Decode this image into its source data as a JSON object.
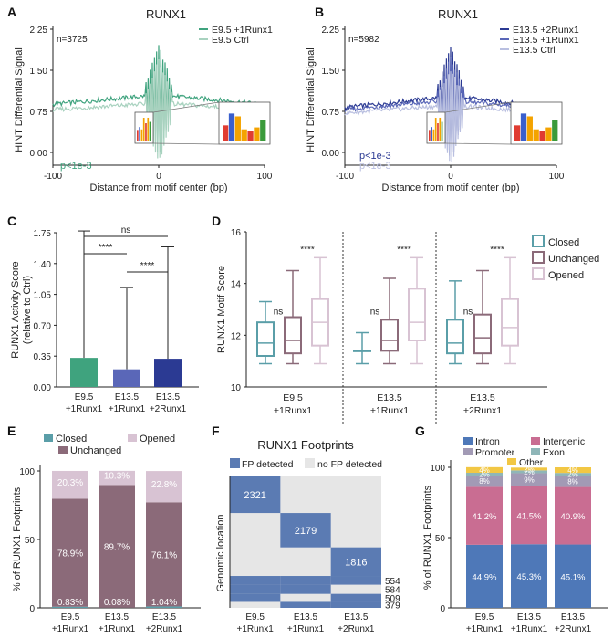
{
  "colors": {
    "green": "#3fa37e",
    "green_light": "#a8d2bf",
    "navy": "#2b3a93",
    "blue_mid": "#5a67b8",
    "blue_light": "#b9bfe0",
    "teal": "#5a9ea8",
    "mauve": "#8b6a79",
    "pink_light": "#d8c3d3",
    "intron": "#4e78b8",
    "intergenic": "#c96d92",
    "promoter": "#a29ab5",
    "exon": "#8fb6b8",
    "other": "#f2c744",
    "fp_blue": "#5b7bb3",
    "fp_gray": "#e6e6e6"
  },
  "panels": {
    "A": "A",
    "B": "B",
    "C": "C",
    "D": "D",
    "E": "E",
    "F": "F",
    "G": "G"
  },
  "chart_data": [
    {
      "id": "A",
      "type": "line",
      "title": "RUNX1",
      "annotation_n": "n=3725",
      "pvalue": "p<1e-3",
      "xlabel": "Distance from motif center (bp)",
      "ylabel": "HINT Differential Signal",
      "xlim": [
        -100,
        100
      ],
      "ylim": [
        0,
        2.25
      ],
      "xticks": [
        "-100",
        "0",
        "100"
      ],
      "yticks": [
        "0.00",
        "0.75",
        "1.50",
        "2.25"
      ],
      "series": [
        {
          "name": "E9.5 +1Runx1",
          "baseline": 1.05,
          "edge": 0.88,
          "color_key": "green"
        },
        {
          "name": "E9.5 Ctrl",
          "baseline": 0.9,
          "edge": 0.78,
          "color_key": "green_light"
        }
      ]
    },
    {
      "id": "B",
      "type": "line",
      "title": "RUNX1",
      "annotation_n": "n=5982",
      "pvalue_lines": [
        "p<1e-3",
        "p<1e-3"
      ],
      "xlabel": "Distance from motif center (bp)",
      "ylabel": "HINT Differential Signal",
      "xlim": [
        -100,
        100
      ],
      "ylim": [
        0,
        2.25
      ],
      "xticks": [
        "-100",
        "0",
        "100"
      ],
      "yticks": [
        "0.00",
        "0.75",
        "1.50",
        "2.25"
      ],
      "series": [
        {
          "name": "E13.5 +2Runx1",
          "baseline": 1.02,
          "edge": 0.82,
          "color_key": "navy"
        },
        {
          "name": "E13.5 +1Runx1",
          "baseline": 0.95,
          "edge": 0.78,
          "color_key": "blue_mid"
        },
        {
          "name": "E13.5 Ctrl",
          "baseline": 0.86,
          "edge": 0.72,
          "color_key": "blue_light"
        }
      ]
    },
    {
      "id": "C",
      "type": "bar",
      "ylabel_lines": [
        "RUNX1 Activity Score",
        "(relative to Ctrl)"
      ],
      "ylim": [
        0,
        1.75
      ],
      "yticks": [
        "0.00",
        "0.35",
        "0.70",
        "1.05",
        "1.40",
        "1.75"
      ],
      "categories": [
        [
          "E9.5",
          "+1Runx1"
        ],
        [
          "E13.5",
          "+1Runx1"
        ],
        [
          "E13.5",
          "+2Runx1"
        ]
      ],
      "values": [
        0.33,
        0.2,
        0.32
      ],
      "errors": [
        1.44,
        0.93,
        1.27
      ],
      "bar_color_keys": [
        "green",
        "blue_mid",
        "navy"
      ],
      "significance": [
        {
          "pair": [
            0,
            2
          ],
          "label": "ns"
        },
        {
          "pair": [
            0,
            1
          ],
          "label": "****"
        },
        {
          "pair": [
            1,
            2
          ],
          "label": "****"
        }
      ]
    },
    {
      "id": "D",
      "type": "box",
      "ylabel": "RUNX1 Motif Score",
      "ylim": [
        10,
        16
      ],
      "yticks": [
        "10",
        "12",
        "14",
        "16"
      ],
      "groups": [
        [
          "E9.5",
          "+1Runx1"
        ],
        [
          "E13.5",
          "+1Runx1"
        ],
        [
          "E13.5",
          "+2Runx1"
        ]
      ],
      "legend": [
        "Closed",
        "Unchanged",
        "Opened"
      ],
      "color_keys": [
        "teal",
        "mauve",
        "pink_light"
      ],
      "boxes": [
        [
          [
            10.9,
            11.2,
            11.7,
            12.5,
            13.3
          ],
          [
            10.9,
            11.3,
            11.8,
            12.7,
            14.5
          ],
          [
            10.9,
            11.6,
            12.5,
            13.4,
            15.0
          ]
        ],
        [
          [
            10.9,
            11.4,
            11.4,
            11.4,
            12.1
          ],
          [
            10.9,
            11.4,
            11.8,
            12.6,
            14.2
          ],
          [
            10.9,
            11.8,
            12.5,
            13.8,
            15.0
          ]
        ],
        [
          [
            10.9,
            11.3,
            11.7,
            12.6,
            14.1
          ],
          [
            10.9,
            11.3,
            11.9,
            12.8,
            14.5
          ],
          [
            10.9,
            11.6,
            12.3,
            13.4,
            15.0
          ]
        ]
      ],
      "sig_labels": [
        [
          "ns",
          "****"
        ],
        [
          "ns",
          "****"
        ],
        [
          "ns",
          "****"
        ]
      ]
    },
    {
      "id": "E",
      "type": "stacked_bar",
      "ylabel": "% of RUNX1 Footprints",
      "ylim": [
        0,
        100
      ],
      "yticks": [
        "0",
        "50",
        "100"
      ],
      "legend": [
        "Closed",
        "Opened",
        "Unchanged"
      ],
      "categories": [
        [
          "E9.5",
          "+1Runx1"
        ],
        [
          "E13.5",
          "+1Runx1"
        ],
        [
          "E13.5",
          "+2Runx1"
        ]
      ],
      "series": [
        {
          "name": "Closed",
          "values": [
            0.83,
            0.08,
            1.04
          ],
          "labels": [
            "0.83%",
            "0.08%",
            "1.04%"
          ],
          "color_key": "teal"
        },
        {
          "name": "Unchanged",
          "values": [
            78.9,
            89.7,
            76.1
          ],
          "labels": [
            "78.9%",
            "89.7%",
            "76.1%"
          ],
          "color_key": "mauve"
        },
        {
          "name": "Opened",
          "values": [
            20.3,
            10.3,
            22.8
          ],
          "labels": [
            "20.3%",
            "10.3%",
            "22.8%"
          ],
          "color_key": "pink_light"
        }
      ]
    },
    {
      "id": "F",
      "type": "heatmap",
      "title": "RUNX1 Footprints",
      "legend": [
        "FP detected",
        "no FP detected"
      ],
      "ylabel": "Genomic location",
      "columns": [
        [
          "E9.5",
          "+1Runx1"
        ],
        [
          "E13.5",
          "+1Runx1"
        ],
        [
          "E13.5",
          "+2Runx1"
        ]
      ],
      "blocks": [
        {
          "label": "2321",
          "count": 2321,
          "detected": [
            true,
            false,
            false
          ]
        },
        {
          "label": "2179",
          "count": 2179,
          "detected": [
            false,
            true,
            false
          ]
        },
        {
          "label": "1816",
          "count": 1816,
          "detected": [
            false,
            false,
            true
          ]
        },
        {
          "label": "554",
          "count": 554,
          "detected": [
            true,
            true,
            true
          ]
        },
        {
          "label": "584",
          "count": 584,
          "detected": [
            true,
            true,
            false
          ]
        },
        {
          "label": "509",
          "count": 509,
          "detected": [
            true,
            false,
            true
          ]
        },
        {
          "label": "379",
          "count": 379,
          "detected": [
            false,
            true,
            true
          ]
        }
      ]
    },
    {
      "id": "G",
      "type": "stacked_bar",
      "ylabel": "% of RUNX1 Footprints",
      "ylim": [
        0,
        100
      ],
      "yticks": [
        "0",
        "50",
        "100"
      ],
      "legend": [
        "Intron",
        "Intergenic",
        "Promoter",
        "Exon",
        "Other"
      ],
      "categories": [
        [
          "E9.5",
          "+1Runx1"
        ],
        [
          "E13.5",
          "+1Runx1"
        ],
        [
          "E13.5",
          "+2Runx1"
        ]
      ],
      "series": [
        {
          "name": "Intron",
          "values": [
            44.9,
            45.3,
            45.1
          ],
          "labels": [
            "44.9%",
            "45.3%",
            "45.1%"
          ],
          "color_key": "intron"
        },
        {
          "name": "Intergenic",
          "values": [
            41.2,
            41.5,
            40.9
          ],
          "labels": [
            "41.2%",
            "41.5%",
            "40.9%"
          ],
          "color_key": "intergenic"
        },
        {
          "name": "Promoter",
          "values": [
            8,
            9,
            8
          ],
          "labels": [
            "8%",
            "9%",
            "8%"
          ],
          "color_key": "promoter"
        },
        {
          "name": "Exon",
          "values": [
            2,
            2,
            2
          ],
          "labels": [
            "2%",
            "2%",
            "2%"
          ],
          "color_key": "exon"
        },
        {
          "name": "Other",
          "values": [
            4,
            2,
            4
          ],
          "labels": [
            "4%",
            "2%",
            "4%"
          ],
          "color_key": "other"
        }
      ]
    }
  ]
}
